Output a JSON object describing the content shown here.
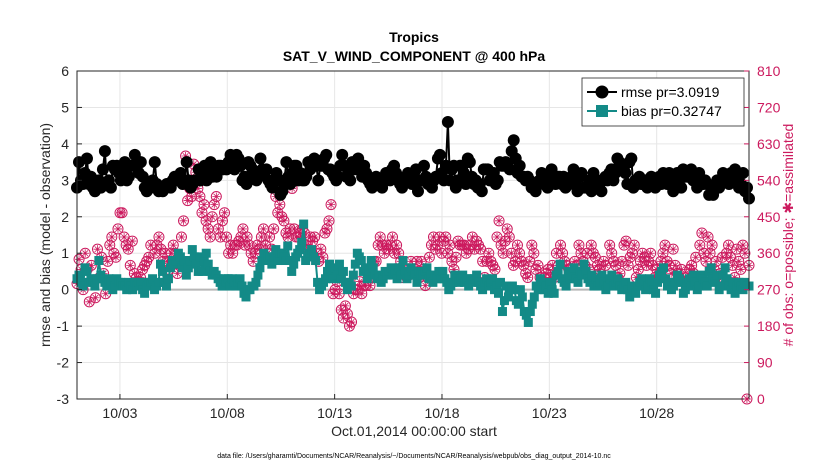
{
  "chart_data": {
    "type": "line",
    "title": "Tropics",
    "subtitle": "SAT_V_WIND_COMPONENT @ 400 hPa",
    "xlabel": "Oct.01,2014 00:00:00 start",
    "ylabel": "rmse and bias (model - observation)",
    "ylabel_right": "# of obs: o=possible; ✱=assimilated",
    "ylim": [
      -3,
      6
    ],
    "ylim_right": [
      0,
      810
    ],
    "xlim": [
      1,
      32.3
    ],
    "yticks": [
      "-3",
      "-2",
      "-1",
      "0",
      "1",
      "2",
      "3",
      "4",
      "5",
      "6"
    ],
    "yticks_right": [
      "0",
      "90",
      "180",
      "270",
      "360",
      "450",
      "540",
      "630",
      "720",
      "810"
    ],
    "xticks": [
      {
        "x": 3,
        "label": "10/03"
      },
      {
        "x": 8,
        "label": "10/08"
      },
      {
        "x": 13,
        "label": "10/13"
      },
      {
        "x": 18,
        "label": "10/18"
      },
      {
        "x": 23,
        "label": "10/23"
      },
      {
        "x": 28,
        "label": "10/28"
      }
    ],
    "grid": true,
    "legend_position": "top-right",
    "footnote": "data file: /Users/gharamti/Documents/NCAR/Reanalysis/~/Documents/NCAR/Reanalysis/webpub/obs_diag_output_2014-10.nc",
    "colors": {
      "rmse": "#000000",
      "bias": "#138a87",
      "obs": "#cc1a5e",
      "zero_line": "#b8b8b8",
      "grid": "#e6e6e6"
    },
    "series": [
      {
        "name": "rmse pr=3.0919",
        "marker": "circle",
        "values": [
          2.8,
          3.5,
          3.0,
          2.9,
          3.2,
          3.6,
          2.9,
          3.1,
          2.8,
          2.7,
          2.9,
          3.0,
          2.8,
          3.3,
          3.8,
          2.9,
          3.0,
          2.8,
          3.4,
          3.3,
          3.4,
          3.2,
          3.0,
          3.3,
          3.5,
          3.0,
          3.1,
          3.4,
          3.4,
          3.7,
          3.4,
          3.2,
          3.5,
          3.1,
          2.8,
          2.7,
          2.9,
          2.8,
          3.0,
          3.5,
          2.9,
          2.7,
          2.8,
          2.7,
          2.8,
          2.9,
          2.9,
          2.8,
          3.0,
          3.1,
          3.0,
          3.1,
          3.2,
          2.9,
          3.0,
          3.5,
          3.0,
          2.8,
          2.9,
          3.0,
          3.0,
          3.3,
          3.0,
          3.1,
          3.4,
          3.0,
          3.2,
          3.5,
          3.1,
          3.2,
          3.1,
          3.4,
          3.4,
          3.3,
          3.4,
          3.3,
          3.5,
          3.7,
          3.6,
          3.3,
          3.7,
          3.6,
          3.4,
          3.0,
          3.1,
          2.9,
          3.5,
          3.4,
          3.3,
          3.1,
          3.0,
          3.1,
          3.6,
          3.3,
          3.2,
          3.3,
          3.0,
          2.9,
          2.8,
          3.0,
          3.2,
          3.0,
          2.6,
          2.7,
          3.0,
          3.5,
          3.1,
          2.9,
          3.2,
          3.4,
          3.4,
          3.0,
          3.2,
          3.0,
          3.0,
          3.1,
          3.5,
          3.3,
          3.4,
          3.6,
          3.4,
          3.0,
          3.4,
          3.4,
          3.6,
          3.7,
          3.3,
          3.3,
          3.2,
          3.1,
          3.0,
          3.1,
          3.4,
          3.7,
          3.4,
          3.1,
          3.2,
          3.0,
          3.5,
          3.3,
          3.4,
          3.6,
          3.3,
          3.1,
          3.4,
          3.2,
          3.0,
          2.9,
          2.8,
          3.0,
          3.1,
          3.0,
          2.9,
          2.8,
          3.0,
          3.2,
          3.1,
          3.0,
          3.3,
          3.4,
          3.2,
          3.0,
          2.9,
          2.8,
          3.0,
          3.1,
          3.2,
          3.0,
          2.9,
          3.2,
          3.3,
          2.7,
          3.0,
          3.0,
          3.4,
          3.1,
          2.9,
          3.0,
          2.8,
          3.0,
          3.1,
          3.6,
          3.7,
          3.2,
          3.0,
          3.4,
          4.6,
          3.0,
          3.3,
          3.4,
          2.8,
          3.0,
          3.4,
          3.4,
          3.2,
          2.9,
          3.6,
          3.5,
          3.1,
          2.9,
          3.0,
          2.8,
          2.9,
          2.7,
          3.3,
          3.3,
          3.3,
          3.0,
          3.0,
          3.2,
          2.9,
          3.0,
          3.5,
          3.4,
          3.4,
          3.5,
          3.4,
          3.3,
          3.8,
          4.1,
          3.6,
          3.2,
          3.4,
          3.1,
          3.1,
          3.0,
          3.1,
          3.0,
          2.8,
          2.9,
          2.7,
          2.9,
          3.0,
          3.2,
          2.9,
          3.0,
          2.8,
          3.2,
          3.3,
          3.0,
          2.9,
          3.1,
          3.1,
          2.9,
          3.1,
          2.8,
          3.0,
          2.9,
          3.1,
          3.3,
          3.0,
          2.7,
          3.1,
          3.2,
          2.8,
          2.8,
          2.8,
          3.0,
          2.7,
          3.2,
          2.9,
          3.0,
          2.9,
          2.7,
          3.0,
          3.1,
          3.0,
          3.2,
          3.3,
          3.0,
          3.2,
          3.6,
          3.5,
          3.3,
          3.4,
          3.2,
          2.9,
          3.5,
          3.6,
          2.8,
          3.0,
          2.9,
          3.1,
          2.9,
          3.0,
          3.0,
          2.8,
          3.0,
          3.1,
          3.0,
          2.8,
          3.0,
          3.1,
          2.9,
          3.2,
          3.0,
          2.9,
          3.2,
          3.0,
          2.7,
          3.0,
          3.2,
          3.0,
          2.8,
          3.3,
          3.1,
          3.1,
          3.2,
          3.3,
          3.0,
          3.1,
          2.8,
          3.2,
          2.9,
          2.9,
          3.0,
          2.9,
          2.6,
          2.8,
          2.6,
          2.9,
          3.0,
          2.8,
          3.0,
          3.2,
          3.0,
          3.1,
          2.9,
          3.2,
          3.1,
          3.3,
          3.0,
          2.8,
          2.9,
          3.2,
          2.7,
          2.8,
          2.5
        ]
      },
      {
        "name": "bias pr=0.32747",
        "marker": "square",
        "values": [
          0.3,
          0.4,
          0.2,
          0.1,
          0.6,
          0.5,
          0.2,
          0.3,
          0.2,
          0.1,
          0.3,
          0.8,
          0.4,
          0.3,
          0.2,
          0.1,
          0.3,
          0.2,
          0.0,
          0.1,
          0.3,
          0.2,
          0.2,
          0.1,
          0.1,
          0.0,
          0.2,
          0.1,
          0.0,
          0.2,
          0.1,
          0.2,
          0.2,
          0.0,
          -0.1,
          0.1,
          0.2,
          0.2,
          0.3,
          0.0,
          0.1,
          0.2,
          0.7,
          0.5,
          0.2,
          0.1,
          0.3,
          0.6,
          0.8,
          0.7,
          0.8,
          1.0,
          0.9,
          0.6,
          0.8,
          0.4,
          0.6,
          0.8,
          1.1,
          0.9,
          0.7,
          0.5,
          0.9,
          0.5,
          0.8,
          1.0,
          0.7,
          0.5,
          0.4,
          0.5,
          0.4,
          0.3,
          0.2,
          0.1,
          0.3,
          0.2,
          0.3,
          0.1,
          0.3,
          0.2,
          0.1,
          0.2,
          0.3,
          0.1,
          -0.1,
          -0.2,
          0.0,
          0.0,
          0.1,
          0.1,
          0.2,
          0.4,
          0.6,
          0.8,
          1.0,
          0.8,
          0.9,
          0.9,
          0.7,
          0.9,
          1.1,
          0.8,
          1.0,
          1.0,
          0.9,
          0.8,
          1.2,
          0.8,
          0.5,
          0.7,
          0.9,
          1.0,
          1.1,
          1.3,
          1.8,
          0.8,
          0.9,
          1.0,
          1.1,
          0.9,
          0.8,
          0.2,
          0.0,
          0.1,
          0.2,
          0.3,
          0.5,
          0.7,
          0.5,
          0.3,
          0.6,
          0.4,
          0.7,
          0.3,
          0.5,
          0.2,
          0.0,
          0.2,
          0.1,
          0.4,
          0.7,
          1.0,
          0.9,
          0.8,
          0.5,
          0.6,
          0.3,
          0.5,
          0.8,
          0.6,
          0.4,
          0.3,
          0.4,
          0.2,
          0.3,
          0.5,
          0.4,
          0.5,
          0.6,
          0.4,
          0.5,
          0.3,
          0.6,
          0.4,
          0.8,
          0.5,
          0.3,
          0.4,
          0.6,
          0.5,
          0.4,
          0.2,
          0.5,
          0.4,
          0.4,
          0.5,
          0.6,
          0.3,
          0.4,
          0.2,
          0.4,
          0.3,
          0.5,
          0.3,
          0.5,
          0.3,
          0.2,
          0.0,
          0.1,
          0.2,
          0.4,
          0.3,
          0.2,
          0.3,
          0.4,
          0.2,
          0.3,
          0.1,
          0.3,
          0.2,
          0.3,
          0.4,
          0.2,
          0.1,
          0.0,
          0.2,
          0.3,
          0.1,
          0.2,
          0.3,
          0.0,
          0.1,
          -0.1,
          0.2,
          -0.6,
          -0.3,
          0.1,
          -0.2,
          0.0,
          0.1,
          0.0,
          -0.3,
          -0.4,
          0.0,
          -0.2,
          -0.6,
          -0.7,
          -0.9,
          -0.6,
          -0.4,
          -0.2,
          0.1,
          0.0,
          0.3,
          0.2,
          0.0,
          0.1,
          -0.1,
          0.2,
          0.0,
          -0.1,
          0.4,
          0.5,
          0.7,
          0.3,
          0.2,
          0.1,
          0.5,
          0.3,
          0.4,
          0.6,
          0.3,
          0.2,
          0.5,
          0.4,
          0.7,
          0.5,
          0.3,
          0.2,
          0.4,
          0.1,
          0.3,
          0.1,
          0.2,
          0.4,
          0.2,
          0.0,
          0.1,
          0.3,
          0.4,
          0.1,
          0.2,
          0.3,
          0.1,
          0.0,
          0.1,
          0.2,
          0.0,
          -0.2,
          0.1,
          0.0,
          -0.1,
          0.1,
          0.2,
          0.3,
          0.2,
          0.0,
          0.1,
          0.3,
          0.2,
          0.0,
          -0.1,
          0.2,
          0.4,
          0.5,
          0.6,
          0.3,
          0.1,
          0.2,
          0.0,
          0.1,
          0.2,
          0.4,
          0.3,
          0.2,
          -0.1,
          0.0,
          0.2,
          0.3,
          0.1,
          0.4,
          0.2,
          0.0,
          0.1,
          0.4,
          0.3,
          0.2,
          0.1,
          0.5,
          0.6,
          0.3,
          0.2,
          0.4,
          0.0,
          0.1,
          0.4,
          0.6,
          0.3,
          0.1,
          0.0,
          0.2,
          -0.1,
          0.1,
          0.2,
          0.1,
          0.0,
          0.2,
          0.1,
          0.1
        ]
      },
      {
        "name": "obs possible/assimilated",
        "axis": "right",
        "marker": "circle-star",
        "values": [
          285,
          345,
          320,
          270,
          360,
          320,
          240,
          330,
          290,
          250,
          370,
          300,
          350,
          310,
          260,
          340,
          380,
          400,
          360,
          350,
          420,
          460,
          460,
          400,
          380,
          370,
          330,
          390,
          310,
          300,
          290,
          300,
          320,
          330,
          340,
          350,
          380,
          540,
          360,
          380,
          400,
          370,
          340,
          360,
          340,
          320,
          360,
          380,
          360,
          310,
          330,
          400,
          440,
          600,
          490,
          520,
          500,
          580,
          560,
          520,
          500,
          460,
          480,
          440,
          420,
          400,
          450,
          480,
          500,
          420,
          400,
          440,
          460,
          400,
          360,
          380,
          360,
          380,
          380,
          390,
          400,
          420,
          380,
          400,
          380,
          360,
          340,
          360,
          380,
          370,
          400,
          420,
          380,
          360,
          400,
          370,
          420,
          500,
          460,
          480,
          450,
          440,
          410,
          400,
          420,
          520,
          420,
          400,
          400,
          410,
          420,
          410,
          380,
          370,
          400,
          390,
          400,
          360,
          340,
          370,
          350,
          410,
          420,
          440,
          480,
          260,
          270,
          290,
          260,
          220,
          200,
          230,
          210,
          180,
          190,
          260,
          270,
          270,
          290,
          260,
          280,
          280,
          310,
          280,
          300,
          340,
          340,
          380,
          400,
          380,
          360,
          380,
          370,
          380,
          400,
          360,
          380,
          360,
          340,
          300,
          320,
          300,
          320,
          340,
          310,
          320,
          340,
          300,
          340,
          320,
          280,
          300,
          350,
          380,
          400,
          370,
          380,
          400,
          360,
          390,
          400,
          360,
          380,
          340,
          320,
          350,
          390,
          380,
          380,
          380,
          360,
          370,
          380,
          400,
          370,
          390,
          380,
          370,
          340,
          300,
          340,
          360,
          340,
          330,
          320,
          400,
          440,
          380,
          360,
          390,
          420,
          400,
          360,
          330,
          340,
          380,
          360,
          340,
          330,
          310,
          300,
          340,
          380,
          360,
          320,
          330,
          300,
          280,
          300,
          310,
          320,
          300,
          330,
          300,
          360,
          330,
          380,
          360,
          340,
          330,
          320,
          300,
          310,
          340,
          330,
          380,
          360,
          340,
          330,
          360,
          320,
          380,
          360,
          350,
          330,
          320,
          300,
          340,
          330,
          280,
          380,
          360,
          340,
          330,
          300,
          310,
          340,
          380,
          390,
          330,
          350,
          360,
          380,
          300,
          320,
          340,
          360,
          350,
          330,
          340,
          360,
          330,
          300,
          320,
          300,
          340,
          360,
          380,
          340,
          330,
          310,
          370,
          330,
          310,
          300,
          320,
          290,
          300,
          280,
          320,
          330,
          310,
          350,
          300,
          380,
          410,
          360,
          340,
          400,
          360,
          380,
          320,
          340,
          300,
          310,
          350,
          290,
          360,
          380,
          350,
          330,
          300,
          370,
          340,
          320,
          380,
          360,
          0,
          330
        ]
      }
    ]
  }
}
